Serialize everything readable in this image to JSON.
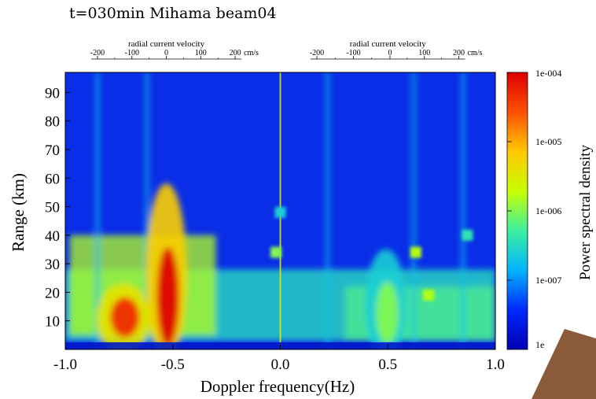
{
  "title": "t=030min Mihama beam04",
  "chart_data": {
    "type": "heatmap",
    "xlabel": "Doppler frequency(Hz)",
    "ylabel": "Range (km)",
    "xlim": [
      -1.0,
      1.0
    ],
    "ylim": [
      0,
      97
    ],
    "x_ticks": [
      "-1.0",
      "-0.5",
      "0.0",
      "0.5",
      "1.0"
    ],
    "x_tick_values": [
      -1.0,
      -0.5,
      0.0,
      0.5,
      1.0
    ],
    "y_ticks": [
      "10",
      "20",
      "30",
      "40",
      "50",
      "60",
      "70",
      "80",
      "90"
    ],
    "y_tick_values": [
      10,
      20,
      30,
      40,
      50,
      60,
      70,
      80,
      90
    ],
    "top_axes": [
      {
        "label": "radial current velocity",
        "unit": "cm/s",
        "ticks": [
          "-200",
          "-100",
          "0",
          "100",
          "200"
        ],
        "tick_freqs": [
          -0.85,
          -0.69,
          -0.53,
          -0.37,
          -0.21
        ]
      },
      {
        "label": "radial current velocity",
        "unit": "cm/s",
        "ticks": [
          "-200",
          "-100",
          "0",
          "100",
          "200"
        ],
        "tick_freqs": [
          0.17,
          0.34,
          0.51,
          0.67,
          0.83
        ]
      }
    ],
    "colorbar": {
      "label": "Power spectral density",
      "scale": "log",
      "range": [
        1e-08,
        0.0001
      ],
      "ticks": [
        "1e-004",
        "1e-005",
        "1e-006",
        "1e-007",
        "1e"
      ],
      "tick_values": [
        0.0001,
        1e-05,
        1e-06,
        1e-07,
        1e-08
      ],
      "colormap": [
        "#0000b4",
        "#0028ff",
        "#00b4ff",
        "#3cf0a0",
        "#c8ff00",
        "#ffc800",
        "#ff5000",
        "#dc0000"
      ]
    },
    "features": [
      {
        "name": "negative Bragg peak",
        "freq": -0.53,
        "range_km": [
          3,
          65
        ],
        "peak_psd": 0.0001
      },
      {
        "name": "negative secondary",
        "freq": -0.73,
        "range_km": [
          5,
          30
        ],
        "peak_psd": 5e-05
      },
      {
        "name": "positive Bragg peak",
        "freq": 0.49,
        "range_km": [
          3,
          42
        ],
        "peak_psd": 1e-06
      },
      {
        "name": "zero-frequency line",
        "freq": 0.0,
        "range_km": [
          0,
          97
        ],
        "peak_psd": 3e-06
      }
    ]
  }
}
